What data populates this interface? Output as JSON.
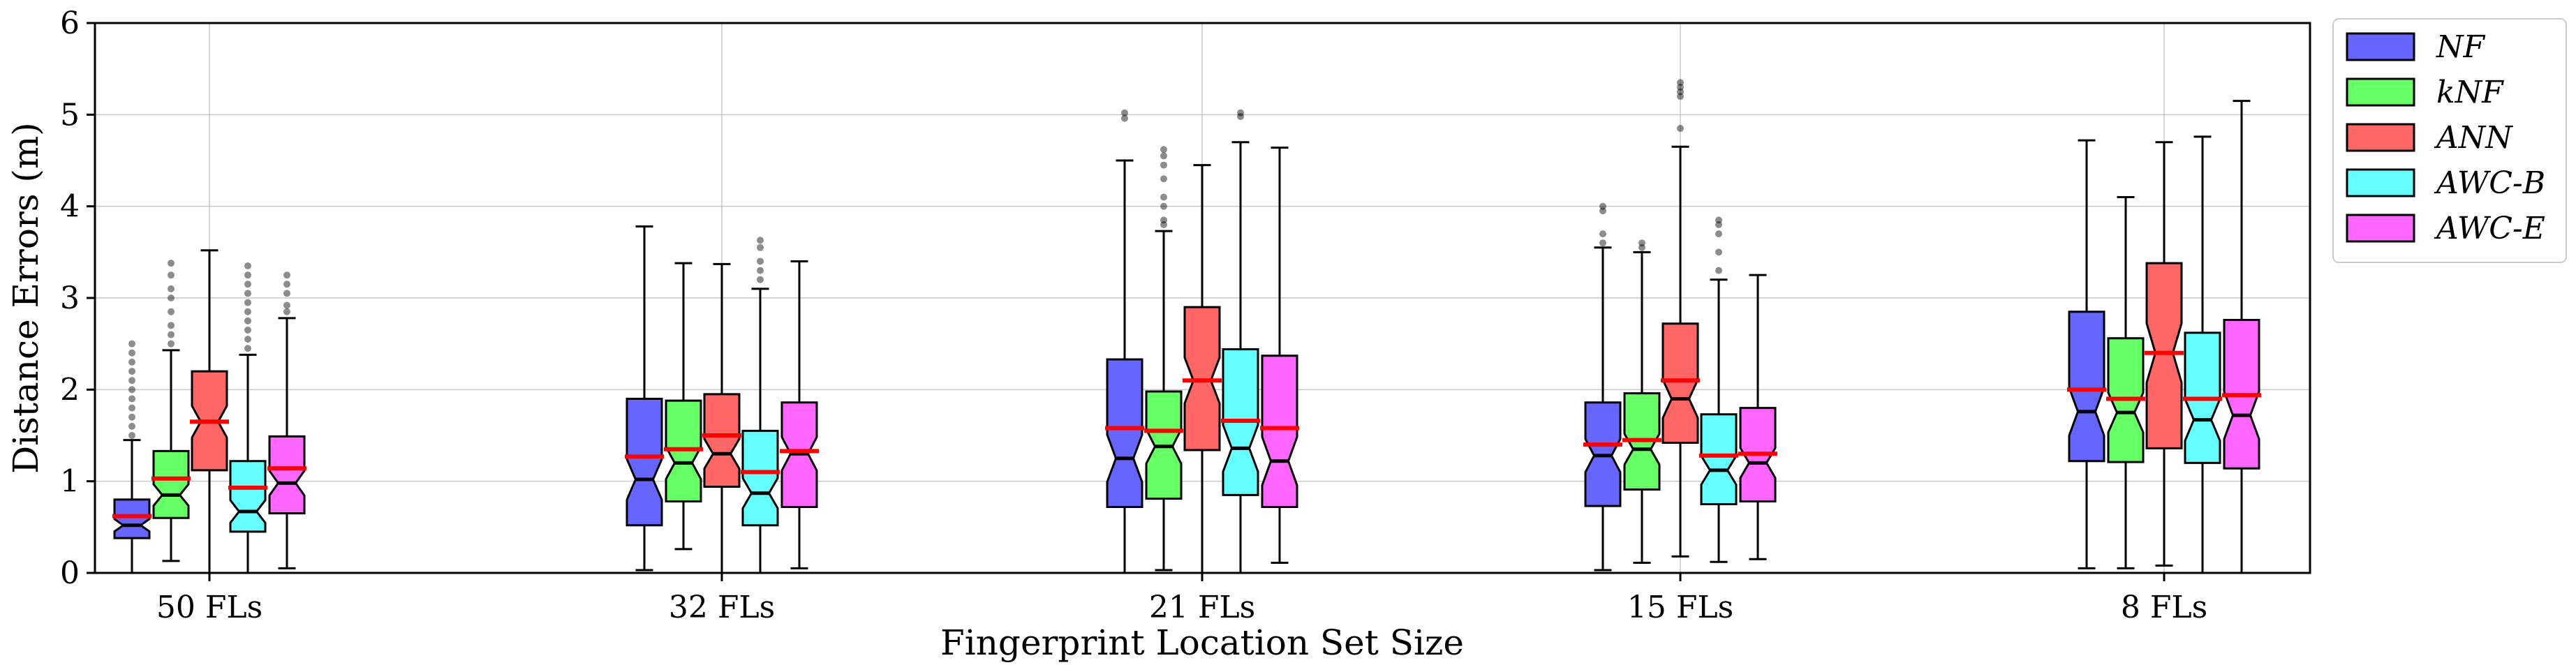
{
  "chart_data": {
    "type": "box",
    "xlabel": "Fingerprint Location Set Size",
    "ylabel": "Distance Errors (m)",
    "ylim": [
      0,
      6
    ],
    "yticks": [
      0,
      1,
      2,
      3,
      4,
      5,
      6
    ],
    "grid": true,
    "legend_placement": "outside-right",
    "categories": [
      "50 FLs",
      "32 FLs",
      "21 FLs",
      "15 FLs",
      "8 FLs"
    ],
    "series": [
      {
        "name": "NF",
        "color": "#6666ff",
        "boxes": [
          {
            "whislo": 0.0,
            "q1": 0.38,
            "med": 0.52,
            "mean": 0.62,
            "q3": 0.8,
            "whishi": 1.45,
            "fliers": [
              1.5,
              1.6,
              1.7,
              1.8,
              1.9,
              2.0,
              2.1,
              2.2,
              2.3,
              2.4,
              2.5
            ]
          },
          {
            "whislo": 0.03,
            "q1": 0.52,
            "med": 1.02,
            "mean": 1.27,
            "q3": 1.9,
            "whishi": 3.78,
            "fliers": []
          },
          {
            "whislo": 0.0,
            "q1": 0.72,
            "med": 1.25,
            "mean": 1.58,
            "q3": 2.33,
            "whishi": 4.5,
            "fliers": [
              4.96,
              5.02
            ]
          },
          {
            "whislo": 0.03,
            "q1": 0.73,
            "med": 1.28,
            "mean": 1.4,
            "q3": 1.86,
            "whishi": 3.55,
            "fliers": [
              3.6,
              3.7,
              3.95,
              4.0
            ]
          },
          {
            "whislo": 0.05,
            "q1": 1.22,
            "med": 1.76,
            "mean": 2.0,
            "q3": 2.85,
            "whishi": 4.72,
            "fliers": []
          }
        ]
      },
      {
        "name": "kNF",
        "color": "#66ff66",
        "boxes": [
          {
            "whislo": 0.13,
            "q1": 0.6,
            "med": 0.85,
            "mean": 1.03,
            "q3": 1.33,
            "whishi": 2.43,
            "fliers": [
              2.5,
              2.6,
              2.7,
              2.85,
              3.0,
              3.1,
              3.25,
              3.38
            ]
          },
          {
            "whislo": 0.26,
            "q1": 0.78,
            "med": 1.2,
            "mean": 1.35,
            "q3": 1.88,
            "whishi": 3.38,
            "fliers": []
          },
          {
            "whislo": 0.03,
            "q1": 0.81,
            "med": 1.38,
            "mean": 1.55,
            "q3": 1.98,
            "whishi": 3.73,
            "fliers": [
              3.8,
              3.85,
              4.0,
              4.1,
              4.3,
              4.45,
              4.55,
              4.62
            ]
          },
          {
            "whislo": 0.11,
            "q1": 0.91,
            "med": 1.35,
            "mean": 1.45,
            "q3": 1.96,
            "whishi": 3.5,
            "fliers": [
              3.55,
              3.6
            ]
          },
          {
            "whislo": 0.05,
            "q1": 1.21,
            "med": 1.75,
            "mean": 1.9,
            "q3": 2.56,
            "whishi": 4.1,
            "fliers": []
          }
        ]
      },
      {
        "name": "ANN",
        "color": "#ff6666",
        "boxes": [
          {
            "whislo": 0.0,
            "q1": 1.12,
            "med": 1.65,
            "mean": 1.65,
            "q3": 2.2,
            "whishi": 3.52,
            "fliers": []
          },
          {
            "whislo": 0.0,
            "q1": 0.94,
            "med": 1.3,
            "mean": 1.5,
            "q3": 1.95,
            "whishi": 3.37,
            "fliers": []
          },
          {
            "whislo": 0.0,
            "q1": 1.34,
            "med": 2.1,
            "mean": 2.1,
            "q3": 2.9,
            "whishi": 4.45,
            "fliers": []
          },
          {
            "whislo": 0.18,
            "q1": 1.42,
            "med": 1.9,
            "mean": 2.1,
            "q3": 2.72,
            "whishi": 4.65,
            "fliers": [
              4.85,
              5.2,
              5.25,
              5.3,
              5.35
            ]
          },
          {
            "whislo": 0.08,
            "q1": 1.36,
            "med": 2.4,
            "mean": 2.4,
            "q3": 3.38,
            "whishi": 4.7,
            "fliers": []
          }
        ]
      },
      {
        "name": "AWC-B",
        "color": "#66ffff",
        "boxes": [
          {
            "whislo": 0.0,
            "q1": 0.45,
            "med": 0.67,
            "mean": 0.93,
            "q3": 1.22,
            "whishi": 2.38,
            "fliers": [
              2.45,
              2.55,
              2.65,
              2.75,
              2.85,
              2.95,
              3.05,
              3.15,
              3.25,
              3.35
            ]
          },
          {
            "whislo": 0.0,
            "q1": 0.52,
            "med": 0.87,
            "mean": 1.1,
            "q3": 1.55,
            "whishi": 3.1,
            "fliers": [
              3.2,
              3.3,
              3.4,
              3.55,
              3.63
            ]
          },
          {
            "whislo": 0.0,
            "q1": 0.85,
            "med": 1.36,
            "mean": 1.66,
            "q3": 2.44,
            "whishi": 4.7,
            "fliers": [
              4.98,
              5.02
            ]
          },
          {
            "whislo": 0.12,
            "q1": 0.75,
            "med": 1.12,
            "mean": 1.28,
            "q3": 1.73,
            "whishi": 3.2,
            "fliers": [
              3.3,
              3.5,
              3.7,
              3.8,
              3.85
            ]
          },
          {
            "whislo": 0.0,
            "q1": 1.2,
            "med": 1.67,
            "mean": 1.9,
            "q3": 2.62,
            "whishi": 4.76,
            "fliers": []
          }
        ]
      },
      {
        "name": "AWC-E",
        "color": "#ff66ff",
        "boxes": [
          {
            "whislo": 0.05,
            "q1": 0.65,
            "med": 0.98,
            "mean": 1.14,
            "q3": 1.49,
            "whishi": 2.78,
            "fliers": [
              2.85,
              2.92,
              3.05,
              3.15,
              3.25
            ]
          },
          {
            "whislo": 0.05,
            "q1": 0.72,
            "med": 1.3,
            "mean": 1.33,
            "q3": 1.86,
            "whishi": 3.4,
            "fliers": []
          },
          {
            "whislo": 0.11,
            "q1": 0.72,
            "med": 1.22,
            "mean": 1.58,
            "q3": 2.37,
            "whishi": 4.64,
            "fliers": []
          },
          {
            "whislo": 0.15,
            "q1": 0.78,
            "med": 1.2,
            "mean": 1.3,
            "q3": 1.8,
            "whishi": 3.25,
            "fliers": []
          },
          {
            "whislo": 0.0,
            "q1": 1.14,
            "med": 1.72,
            "mean": 1.94,
            "q3": 2.76,
            "whishi": 5.15,
            "fliers": []
          }
        ]
      }
    ]
  }
}
